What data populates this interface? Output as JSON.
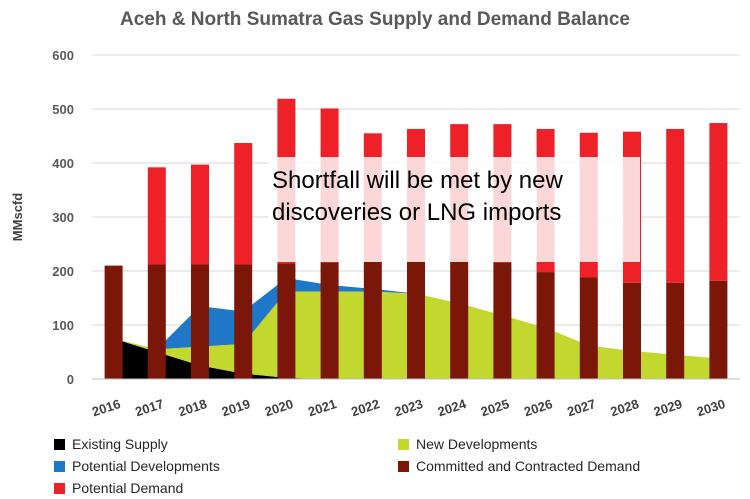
{
  "chart_data": {
    "type": "bar",
    "title": "Aceh & North Sumatra Gas Supply and Demand Balance",
    "ylabel": "MMscfd",
    "ylim": [
      0,
      600
    ],
    "yticks": [
      0,
      100,
      200,
      300,
      400,
      500,
      600
    ],
    "categories": [
      "2016",
      "2017",
      "2018",
      "2019",
      "2020",
      "2021",
      "2022",
      "2023",
      "2024",
      "2025",
      "2026",
      "2027",
      "2028",
      "2029",
      "2030"
    ],
    "area_series": [
      {
        "name": "Existing Supply",
        "color": "#000000",
        "values": [
          75,
          50,
          25,
          10,
          2,
          0,
          0,
          0,
          0,
          0,
          0,
          0,
          0,
          0,
          0
        ]
      },
      {
        "name": "New Developments",
        "color": "#c3d82f",
        "values": [
          0,
          5,
          35,
          55,
          160,
          162,
          162,
          158,
          140,
          118,
          95,
          62,
          52,
          45,
          38
        ]
      },
      {
        "name": "Potential Developments",
        "color": "#1f77c8",
        "values": [
          0,
          0,
          75,
          60,
          25,
          12,
          5,
          0,
          0,
          0,
          0,
          0,
          0,
          0,
          0
        ]
      }
    ],
    "bar_series": [
      {
        "name": "Committed and Contracted Demand",
        "color": "#7b1708",
        "values": [
          210,
          212,
          212,
          212,
          214,
          216,
          218,
          220,
          222,
          216,
          198,
          188,
          178,
          178,
          182
        ]
      },
      {
        "name": "Potential Demand",
        "color": "#ee2129",
        "values": [
          0,
          180,
          185,
          225,
          305,
          285,
          237,
          243,
          250,
          256,
          265,
          268,
          280,
          285,
          292
        ]
      }
    ],
    "annotation": "Shortfall will be met by new discoveries or LNG imports",
    "legend": [
      {
        "label": "Existing Supply",
        "color": "#000000"
      },
      {
        "label": "New Developments",
        "color": "#c3d82f"
      },
      {
        "label": "Potential Developments",
        "color": "#1f77c8"
      },
      {
        "label": "Committed and Contracted Demand",
        "color": "#7b1708"
      },
      {
        "label": "Potential Demand",
        "color": "#ee2129"
      }
    ],
    "legend_position": "bottom",
    "grid": true
  }
}
